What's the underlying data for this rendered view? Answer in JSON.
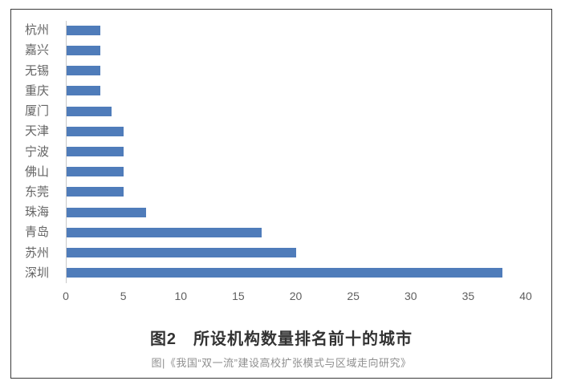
{
  "chart_data": {
    "type": "bar",
    "orientation": "horizontal",
    "categories": [
      "杭州",
      "嘉兴",
      "无锡",
      "重庆",
      "厦门",
      "天津",
      "宁波",
      "佛山",
      "东莞",
      "珠海",
      "青岛",
      "苏州",
      "深圳"
    ],
    "values": [
      3,
      3,
      3,
      3,
      4,
      5,
      5,
      5,
      5,
      7,
      17,
      20,
      38
    ],
    "xlim": [
      0,
      40
    ],
    "xticks": [
      0,
      5,
      10,
      15,
      20,
      25,
      30,
      35,
      40
    ],
    "grid": false,
    "legend": false,
    "bar_color": "#4f7cba",
    "axis_line_color": "#c9c9c9",
    "title": "图2　所设机构数量排名前十的城市"
  },
  "figure": {
    "title": "图2　所设机构数量排名前十的城市",
    "caption": "图|《我国“双一流”建设高校扩张模式与区域走向研究》"
  },
  "colors": {
    "bar": "#4f7cba",
    "frame_border": "#3a3a3a",
    "label_text": "#646464",
    "tick_text": "#5f5f5f",
    "title_text": "#333333",
    "caption_text": "#8f8f8f"
  }
}
